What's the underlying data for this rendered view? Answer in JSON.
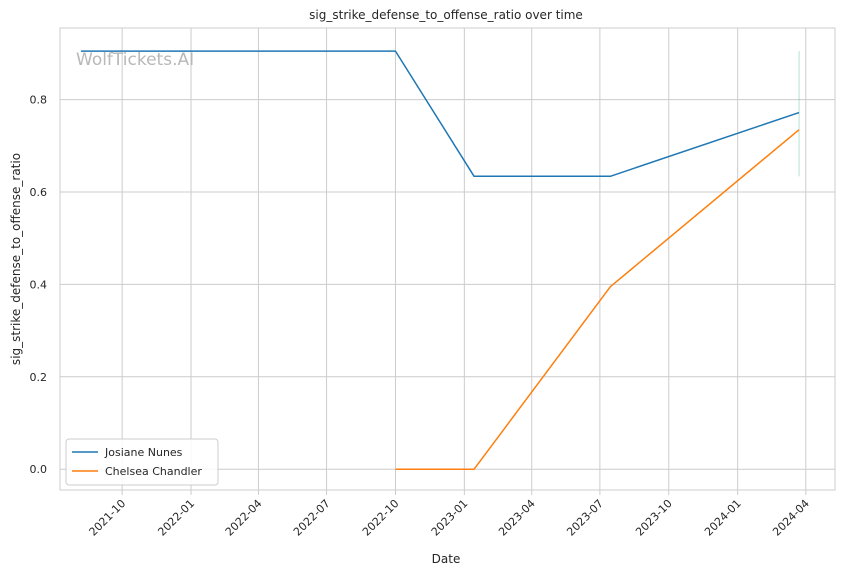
{
  "chart_data": {
    "type": "line",
    "title": "sig_strike_defense_to_offense_ratio over time",
    "xlabel": "Date",
    "ylabel": "sig_strike_defense_to_offense_ratio",
    "watermark": "WolfTickets.AI",
    "x_ticks": [
      "2021-10",
      "2022-01",
      "2022-04",
      "2022-07",
      "2022-10",
      "2023-01",
      "2023-04",
      "2023-07",
      "2023-10",
      "2024-01",
      "2024-04"
    ],
    "y_ticks": [
      "0.0",
      "0.2",
      "0.4",
      "0.6",
      "0.8"
    ],
    "xlim": [
      "2021-07-10",
      "2024-05-10"
    ],
    "ylim": [
      -0.045,
      0.955
    ],
    "grid": true,
    "legend_position": "lower-left",
    "series": [
      {
        "name": "Josiane Nunes",
        "color": "#1f77b4",
        "points": [
          {
            "x": "2021-08-07",
            "y": 0.905
          },
          {
            "x": "2022-10-01",
            "y": 0.905
          },
          {
            "x": "2023-01-14",
            "y": 0.634
          },
          {
            "x": "2023-07-15",
            "y": 0.634
          },
          {
            "x": "2024-03-23",
            "y": 0.772
          }
        ]
      },
      {
        "name": "Chelsea Chandler",
        "color": "#ff7f0e",
        "points": [
          {
            "x": "2022-10-01",
            "y": 0.0
          },
          {
            "x": "2023-01-14",
            "y": 0.0
          },
          {
            "x": "2023-07-15",
            "y": 0.395
          },
          {
            "x": "2024-03-23",
            "y": 0.735
          }
        ]
      }
    ],
    "range_band": {
      "x": "2024-03-23",
      "y_min": 0.634,
      "y_max": 0.905,
      "color": "#2ca58d"
    }
  }
}
